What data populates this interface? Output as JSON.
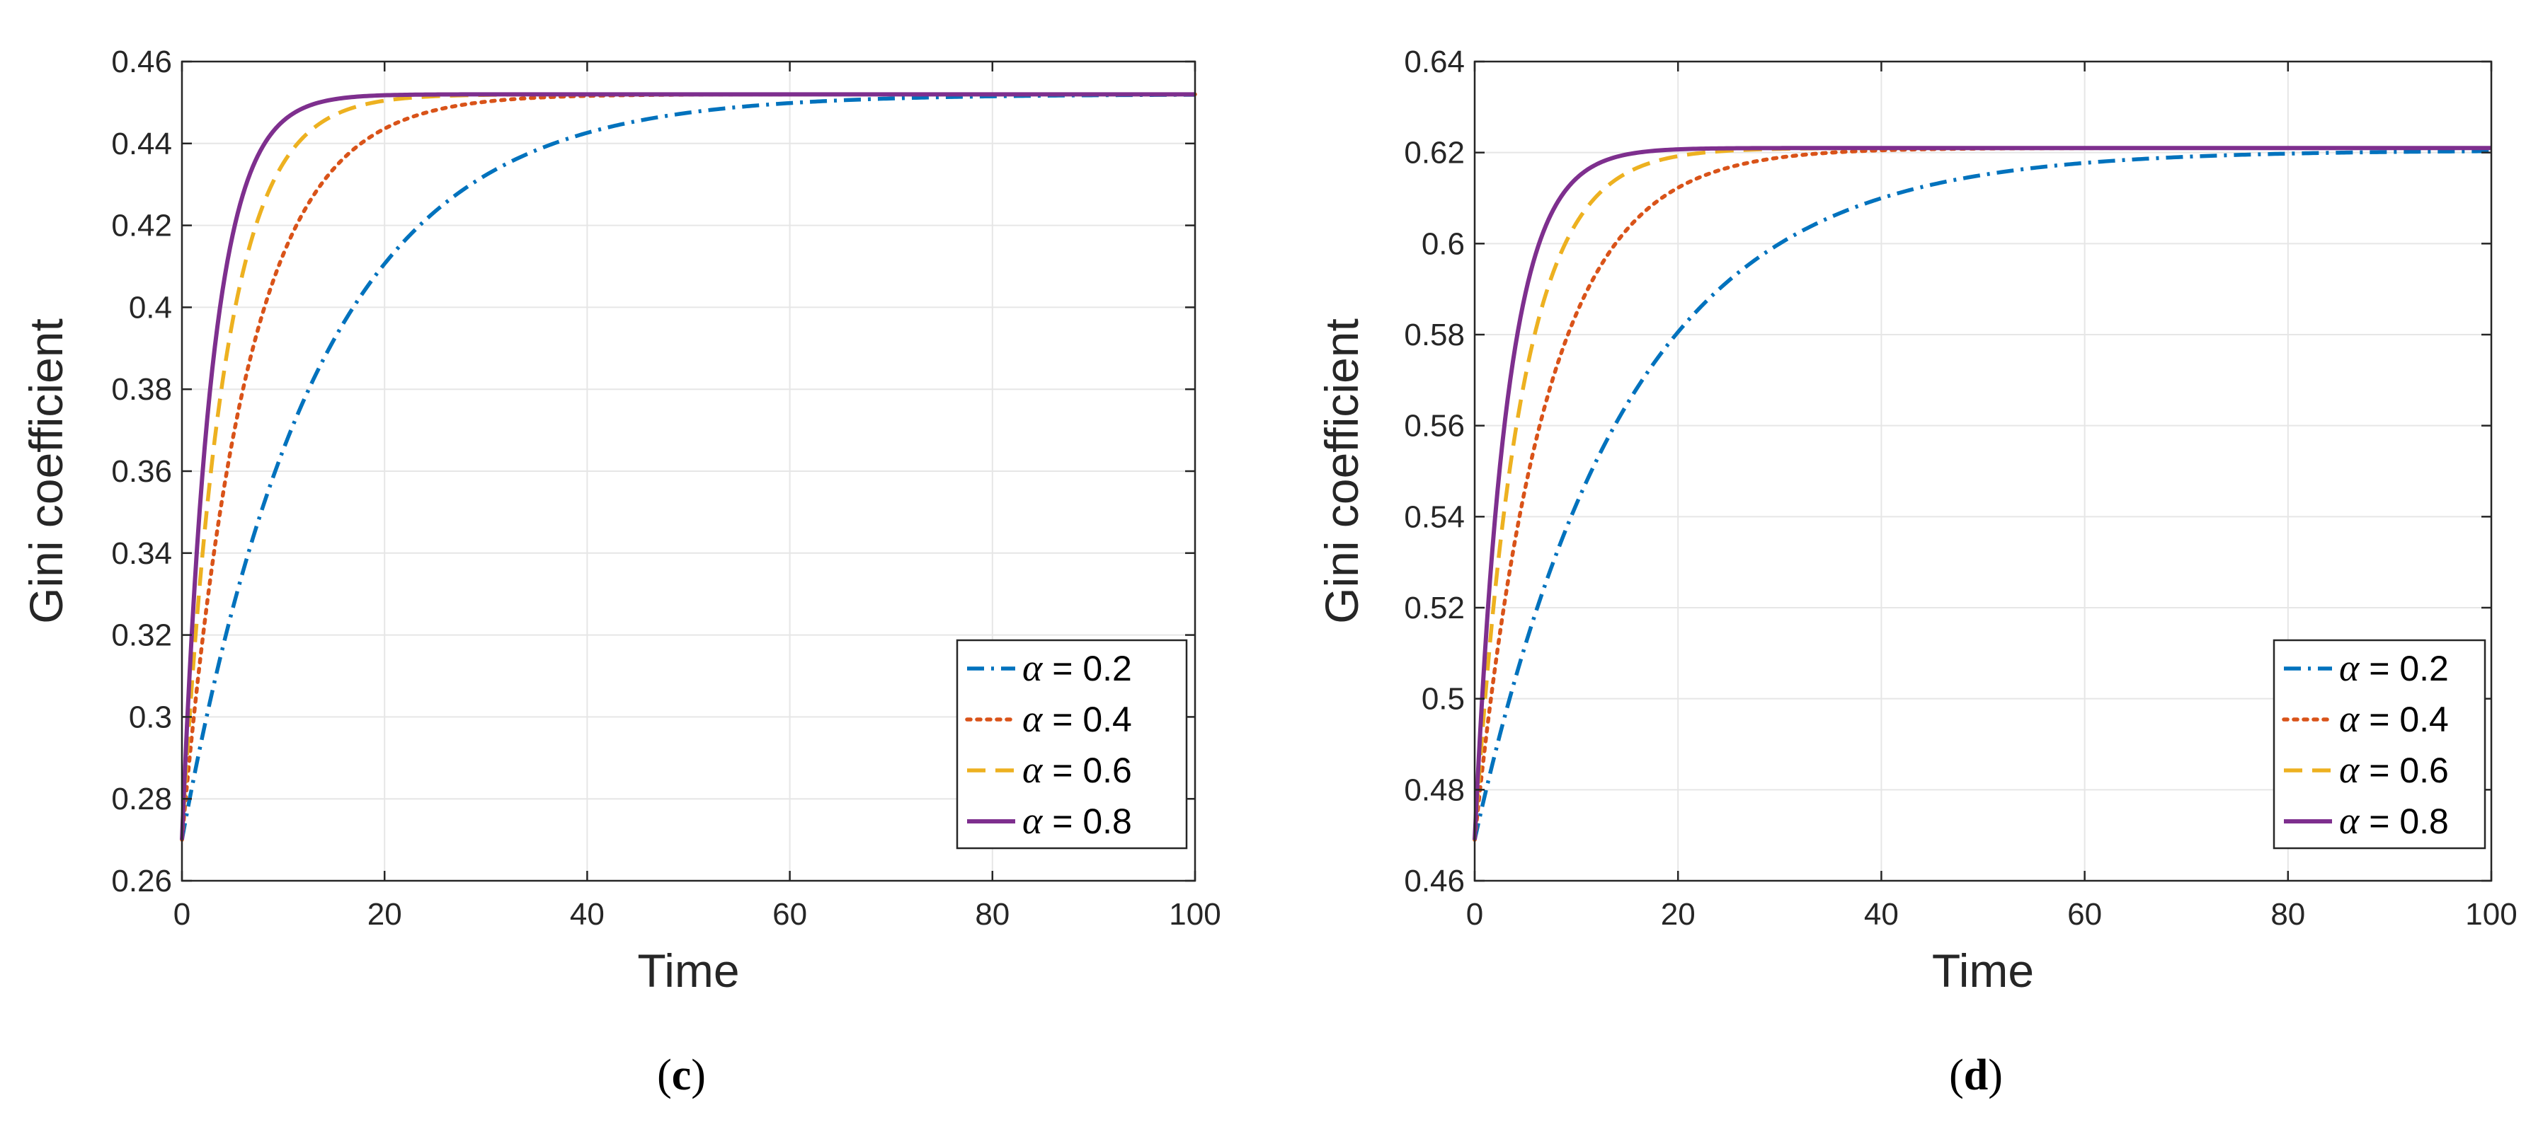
{
  "chart_data": [
    {
      "type": "line",
      "panel_label": "c",
      "caption_open": "(",
      "caption_close": ")",
      "xlabel": "Time",
      "ylabel": "Gini coefficient",
      "xlim": [
        0,
        100
      ],
      "ylim": [
        0.26,
        0.46
      ],
      "xticks": [
        0,
        20,
        40,
        60,
        80,
        100
      ],
      "yticks": [
        0.26,
        0.28,
        0.3,
        0.32,
        0.34,
        0.36,
        0.38,
        0.4,
        0.42,
        0.44,
        0.46
      ],
      "ytick_labels": [
        "0.26",
        "0.28",
        "0.3",
        "0.32",
        "0.34",
        "0.36",
        "0.38",
        "0.4",
        "0.42",
        "0.44",
        "0.46"
      ],
      "xtick_labels": [
        "0",
        "20",
        "40",
        "60",
        "80",
        "100"
      ],
      "grid": true,
      "legend_position": "bottom-right",
      "start_value": 0.27,
      "series": [
        {
          "name": "α = 0.2",
          "greek": "α",
          "label_rest": " = 0.2",
          "alpha": 0.2,
          "color": "#0072BD",
          "style": "dashdot",
          "plateau": 0.452,
          "tau": 13.5
        },
        {
          "name": "α = 0.4",
          "greek": "α",
          "label_rest": " = 0.4",
          "alpha": 0.4,
          "color": "#D95319",
          "style": "dotted",
          "plateau": 0.452,
          "tau": 6.5
        },
        {
          "name": "α = 0.6",
          "greek": "α",
          "label_rest": " = 0.6",
          "alpha": 0.6,
          "color": "#EDB120",
          "style": "dashed",
          "plateau": 0.452,
          "tau": 4.2
        },
        {
          "name": "α = 0.8",
          "greek": "α",
          "label_rest": " = 0.8",
          "alpha": 0.8,
          "color": "#7E2F8E",
          "style": "solid",
          "plateau": 0.452,
          "tau": 3.0
        }
      ]
    },
    {
      "type": "line",
      "panel_label": "d",
      "caption_open": "(",
      "caption_close": ")",
      "xlabel": "Time",
      "ylabel": "Gini coefficient",
      "xlim": [
        0,
        100
      ],
      "ylim": [
        0.46,
        0.64
      ],
      "xticks": [
        0,
        20,
        40,
        60,
        80,
        100
      ],
      "yticks": [
        0.46,
        0.48,
        0.5,
        0.52,
        0.54,
        0.56,
        0.58,
        0.6,
        0.62,
        0.64
      ],
      "ytick_labels": [
        "0.46",
        "0.48",
        "0.5",
        "0.52",
        "0.54",
        "0.56",
        "0.58",
        "0.6",
        "0.62",
        "0.64"
      ],
      "xtick_labels": [
        "0",
        "20",
        "40",
        "60",
        "80",
        "100"
      ],
      "grid": true,
      "legend_position": "bottom-right",
      "start_value": 0.469,
      "series": [
        {
          "name": "α = 0.2",
          "greek": "α",
          "label_rest": " = 0.2",
          "alpha": 0.2,
          "color": "#0072BD",
          "style": "dashdot",
          "plateau": 0.6205,
          "tau": 15.0
        },
        {
          "name": "α = 0.4",
          "greek": "α",
          "label_rest": " = 0.4",
          "alpha": 0.4,
          "color": "#D95319",
          "style": "dotted",
          "plateau": 0.621,
          "tau": 7.0
        },
        {
          "name": "α = 0.6",
          "greek": "α",
          "label_rest": " = 0.6",
          "alpha": 0.6,
          "color": "#EDB120",
          "style": "dashed",
          "plateau": 0.621,
          "tau": 4.5
        },
        {
          "name": "α = 0.8",
          "greek": "α",
          "label_rest": " = 0.8",
          "alpha": 0.8,
          "color": "#7E2F8E",
          "style": "solid",
          "plateau": 0.621,
          "tau": 3.2
        }
      ]
    }
  ]
}
